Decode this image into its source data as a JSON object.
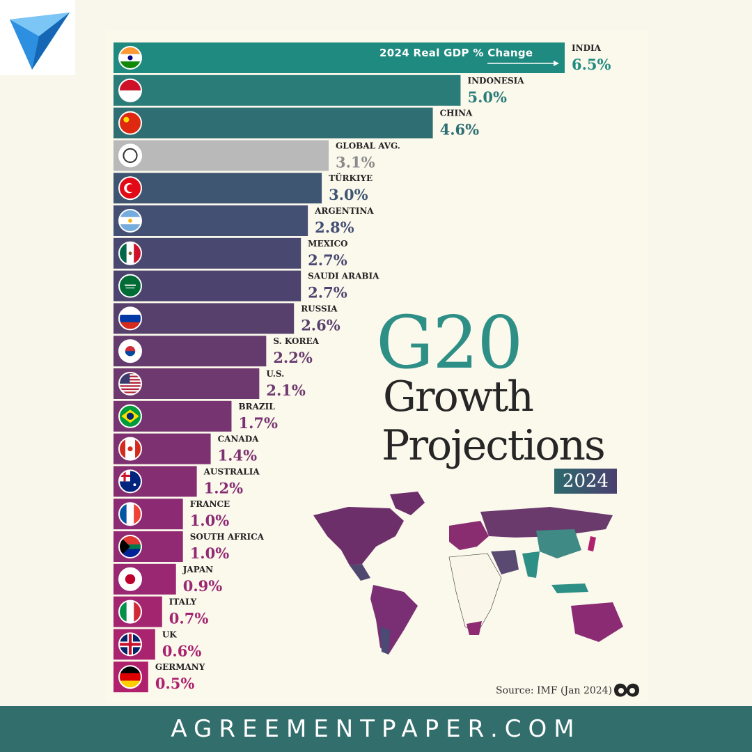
{
  "footer": {
    "site": "AGREEMENTPAPER.COM"
  },
  "heading": {
    "main": "G20",
    "line2": "Growth",
    "line3": "Projections",
    "year": "2024"
  },
  "source": "Source: IMF (Jan 2024)",
  "colors": {
    "footer": "#326e6b",
    "teal": "#2e8f86",
    "global_avg": "#b9b9b9",
    "purple": "#7a2f74"
  },
  "chart_data": {
    "type": "bar",
    "orientation": "horizontal",
    "title": "2024 Real GDP % Change",
    "categories": [
      "INDIA",
      "INDONESIA",
      "CHINA",
      "GLOBAL AVG.",
      "TÜRKIYE",
      "ARGENTINA",
      "MEXICO",
      "SAUDI ARABIA",
      "RUSSIA",
      "S. KOREA",
      "U.S.",
      "BRAZIL",
      "CANADA",
      "AUSTRALIA",
      "FRANCE",
      "SOUTH AFRICA",
      "JAPAN",
      "ITALY",
      "UK",
      "GERMANY"
    ],
    "values": [
      6.5,
      5.0,
      4.6,
      3.1,
      3.0,
      2.8,
      2.7,
      2.7,
      2.6,
      2.2,
      2.1,
      1.7,
      1.4,
      1.2,
      1.0,
      1.0,
      0.9,
      0.7,
      0.6,
      0.5
    ],
    "value_labels": [
      "6.5%",
      "5.0%",
      "4.6%",
      "3.1%",
      "3.0%",
      "2.8%",
      "2.7%",
      "2.7%",
      "2.6%",
      "2.2%",
      "2.1%",
      "1.7%",
      "1.4%",
      "1.2%",
      "1.0%",
      "1.0%",
      "0.9%",
      "0.7%",
      "0.6%",
      "0.5%"
    ],
    "colors": [
      "#1f8a7f",
      "#2a7c78",
      "#2f6f73",
      "#b9b9b9",
      "#3e5672",
      "#444f74",
      "#484871",
      "#4c446f",
      "#58406d",
      "#653b6d",
      "#6d396e",
      "#763570",
      "#7d3170",
      "#852e72",
      "#8c2b73",
      "#922973",
      "#9a2772",
      "#a32570",
      "#aa236f",
      "#b0216d"
    ],
    "flags": [
      "india",
      "indonesia",
      "china",
      "globe",
      "turkiye",
      "argentina",
      "mexico",
      "saudi-arabia",
      "russia",
      "south-korea",
      "us",
      "brazil",
      "canada",
      "australia",
      "france",
      "south-africa",
      "japan",
      "italy",
      "uk",
      "germany"
    ],
    "xlim": [
      0,
      6.5
    ]
  }
}
